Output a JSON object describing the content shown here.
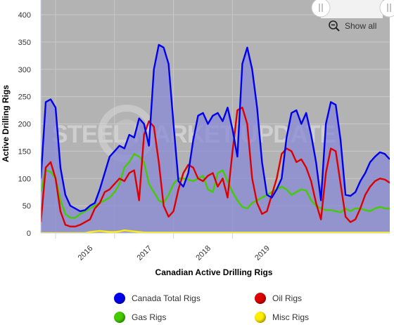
{
  "chart_data": {
    "type": "line",
    "title": "Canadian Active Drilling Rigs",
    "ylabel": "Active Drilling Rigs",
    "ylim": [
      0,
      400
    ],
    "yticks": [
      0,
      50,
      100,
      150,
      200,
      250,
      300,
      350,
      400
    ],
    "xticks": [
      "2016",
      "2017",
      "2018",
      "2019"
    ],
    "x_start": "2015-10",
    "x_end": "2019-09",
    "grid": true,
    "legend_position": "bottom",
    "watermark": "STEEL MARKET UPDATE",
    "series": [
      {
        "name": "Canada Total Rigs",
        "color": "#0000ee",
        "values": [
          100,
          240,
          245,
          230,
          120,
          70,
          50,
          45,
          40,
          42,
          50,
          55,
          80,
          110,
          140,
          150,
          160,
          155,
          180,
          175,
          210,
          200,
          160,
          300,
          345,
          340,
          310,
          200,
          95,
          85,
          110,
          170,
          215,
          220,
          200,
          215,
          220,
          205,
          230,
          190,
          140,
          310,
          340,
          300,
          230,
          130,
          70,
          65,
          80,
          100,
          175,
          220,
          225,
          200,
          220,
          180,
          130,
          60,
          200,
          240,
          235,
          170,
          70,
          68,
          75,
          95,
          110,
          130,
          140,
          148,
          145,
          135
        ]
      },
      {
        "name": "Oil Rigs",
        "color": "#dd0000",
        "values": [
          20,
          120,
          130,
          100,
          40,
          15,
          12,
          12,
          15,
          20,
          25,
          45,
          55,
          75,
          80,
          90,
          100,
          95,
          110,
          115,
          60,
          180,
          205,
          195,
          130,
          50,
          30,
          40,
          80,
          110,
          125,
          120,
          100,
          95,
          105,
          110,
          85,
          100,
          65,
          150,
          225,
          230,
          200,
          100,
          55,
          35,
          40,
          70,
          100,
          145,
          155,
          150,
          130,
          135,
          120,
          95,
          55,
          25,
          110,
          155,
          150,
          90,
          30,
          20,
          25,
          45,
          70,
          85,
          95,
          100,
          98,
          92
        ]
      },
      {
        "name": "Gas Rigs",
        "color": "#44cc00",
        "values": [
          75,
          115,
          112,
          100,
          60,
          35,
          28,
          28,
          35,
          40,
          45,
          50,
          55,
          60,
          65,
          75,
          90,
          120,
          130,
          145,
          140,
          130,
          90,
          75,
          60,
          55,
          70,
          90,
          100,
          100,
          98,
          95,
          100,
          105,
          80,
          75,
          110,
          115,
          95,
          75,
          60,
          48,
          45,
          55,
          60,
          65,
          70,
          75,
          80,
          85,
          80,
          70,
          75,
          80,
          78,
          60,
          50,
          45,
          42,
          42,
          40,
          38,
          45,
          40,
          45,
          45,
          42,
          40,
          45,
          48,
          45,
          45
        ]
      },
      {
        "name": "Misc Rigs",
        "color": "#ffee00",
        "values": [
          0,
          0,
          0,
          0,
          0,
          0,
          0,
          0,
          0,
          0,
          2,
          3,
          4,
          3,
          2,
          2,
          3,
          5,
          4,
          3,
          2,
          1,
          1,
          1,
          1,
          1,
          1,
          1,
          1,
          1,
          1,
          1,
          1,
          1,
          1,
          1,
          1,
          1,
          1,
          1,
          1,
          1,
          1,
          1,
          1,
          1,
          1,
          1,
          1,
          1,
          1,
          1,
          1,
          1,
          1,
          1,
          1,
          1,
          1,
          1,
          1,
          1,
          1,
          1,
          1,
          1,
          1,
          1,
          1,
          1,
          1,
          1
        ]
      }
    ]
  },
  "controls": {
    "show_all_label": "Show all",
    "zoom_icon": "zoom-out-icon",
    "navigator_handle_icon": "drag-handle-icon"
  }
}
